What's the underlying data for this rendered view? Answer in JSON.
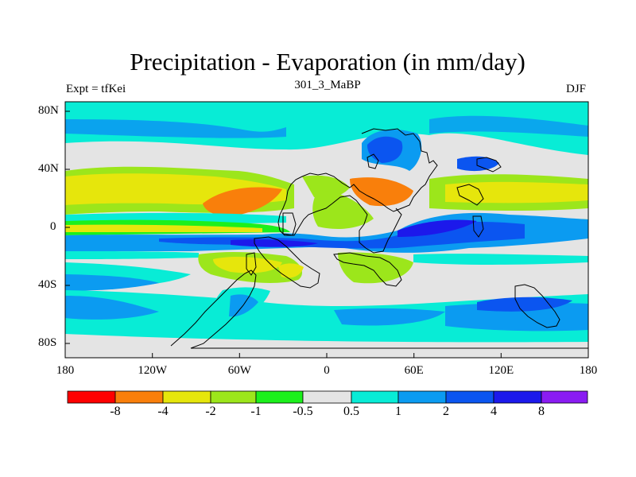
{
  "title": "Precipitation - Evaporation (in mm/day)",
  "subtitle": "301_3_MaBP",
  "left_label": "Expt = tfKei",
  "right_label": "DJF",
  "x_tick_labels": [
    "180",
    "120W",
    "60W",
    "0",
    "60E",
    "120E",
    "180"
  ],
  "y_tick_labels": [
    "80N",
    "40N",
    "0",
    "40S",
    "80S"
  ],
  "colorbar": {
    "labels": [
      "-8",
      "-4",
      "-2",
      "-1",
      "-0.5",
      "0.5",
      "1",
      "2",
      "4",
      "8"
    ],
    "colors": [
      "#ff0000",
      "#f97f0b",
      "#e6e60c",
      "#9ce61b",
      "#1cf01c",
      "#e4e4e4",
      "#08ecd6",
      "#0b9bf1",
      "#0b55f0",
      "#1c19eb",
      "#8a1cf2"
    ]
  }
}
